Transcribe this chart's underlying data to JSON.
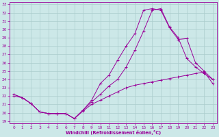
{
  "bg_color": "#cce8e8",
  "line_color": "#990099",
  "grid_color": "#aacccc",
  "xlabel": "Windchill (Refroidissement éolien,°C)",
  "xlabel_color": "#990099",
  "tick_color": "#990099",
  "xlim": [
    -0.5,
    23.5
  ],
  "ylim": [
    18.7,
    33.3
  ],
  "yticks": [
    19,
    20,
    21,
    22,
    23,
    24,
    25,
    26,
    27,
    28,
    29,
    30,
    31,
    32,
    33
  ],
  "xticks": [
    0,
    1,
    2,
    3,
    4,
    5,
    6,
    7,
    8,
    9,
    10,
    11,
    12,
    13,
    14,
    15,
    16,
    17,
    18,
    19,
    20,
    21,
    22,
    23
  ],
  "line1_x": [
    0,
    1,
    2,
    3,
    4,
    5,
    6,
    7,
    8,
    9,
    10,
    11,
    12,
    13,
    14,
    15,
    16,
    17,
    18,
    19,
    20,
    21,
    22,
    23
  ],
  "line1_y": [
    22.0,
    21.8,
    21.1,
    20.1,
    19.9,
    19.9,
    19.9,
    19.3,
    20.2,
    21.0,
    21.5,
    22.0,
    22.5,
    23.0,
    23.3,
    23.5,
    23.7,
    23.9,
    24.1,
    24.3,
    24.5,
    24.7,
    24.9,
    23.5
  ],
  "line2_x": [
    0,
    1,
    2,
    3,
    4,
    5,
    6,
    7,
    8,
    9,
    10,
    11,
    12,
    13,
    14,
    15,
    16,
    17,
    18,
    19,
    20,
    21,
    22,
    23
  ],
  "line2_y": [
    22.2,
    21.8,
    21.1,
    20.1,
    19.9,
    19.9,
    19.9,
    19.3,
    20.3,
    21.5,
    23.5,
    24.5,
    26.3,
    28.0,
    29.5,
    32.3,
    32.5,
    32.3,
    30.2,
    28.8,
    28.9,
    26.0,
    25.0,
    24.0
  ],
  "line3_x": [
    0,
    1,
    2,
    3,
    4,
    5,
    6,
    7,
    8,
    9,
    10,
    11,
    12,
    13,
    14,
    15,
    16,
    17,
    18,
    19,
    20,
    21,
    22,
    23
  ],
  "line3_y": [
    22.2,
    21.8,
    21.1,
    20.1,
    19.9,
    19.9,
    19.9,
    19.3,
    20.3,
    21.3,
    22.2,
    23.2,
    24.0,
    25.5,
    27.5,
    29.8,
    32.3,
    32.5,
    30.3,
    29.0,
    26.5,
    25.5,
    24.7,
    24.0
  ]
}
